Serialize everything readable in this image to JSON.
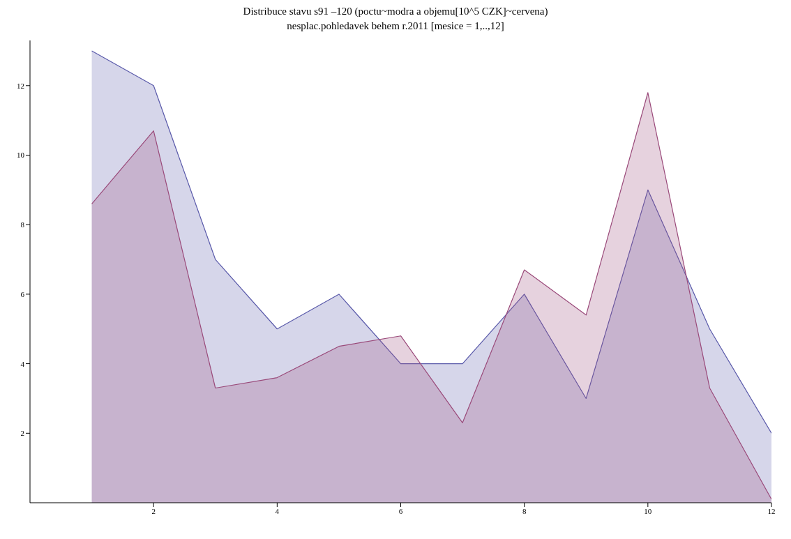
{
  "chart_data": {
    "type": "area",
    "title": "Distribuce stavu s91 –120 (poctu~modra a objemu[10^5 CZK]~cervena)",
    "subtitle": "nesplac.pohledavek behem r.2011 [mesice = 1,..,12]",
    "x": [
      1,
      2,
      3,
      4,
      5,
      6,
      7,
      8,
      9,
      10,
      11,
      12
    ],
    "series": [
      {
        "color": "#5a5aaa",
        "values": [
          13,
          12,
          7,
          5,
          6,
          4,
          4,
          6,
          3,
          9,
          5,
          2
        ]
      },
      {
        "color": "#9a4a7a",
        "values": [
          8.6,
          10.7,
          3.3,
          3.6,
          4.5,
          4.8,
          2.3,
          6.7,
          5.4,
          11.8,
          3.3,
          0.1
        ]
      }
    ],
    "xlim": [
      0,
      12
    ],
    "xticks": [
      2,
      4,
      6,
      8,
      10,
      12
    ],
    "ylim": [
      0,
      13.3
    ],
    "yticks": [
      2,
      4,
      6,
      8,
      10,
      12
    ],
    "grid": false,
    "legend": false
  }
}
